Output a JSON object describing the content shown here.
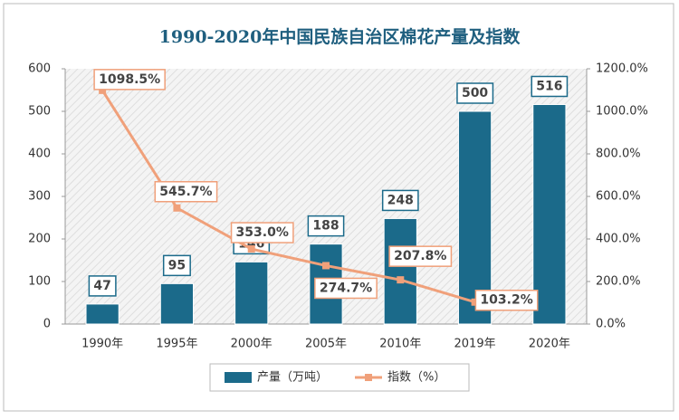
{
  "chart_data": {
    "type": "bar",
    "title": "1990-2020年中国民族自治区棉花产量及指数",
    "categories": [
      "1990年",
      "1995年",
      "2000年",
      "2005年",
      "2010年",
      "2019年",
      "2020年"
    ],
    "series": [
      {
        "name": "产量（万吨）",
        "type": "bar",
        "color": "#1b6a8a",
        "values": [
          47,
          95,
          146,
          188,
          248,
          500,
          516
        ]
      },
      {
        "name": "指数（%）",
        "type": "line",
        "axis": "y2",
        "color": "#f0a07a",
        "values": [
          1098.5,
          545.7,
          353.0,
          274.7,
          207.8,
          103.2,
          null
        ],
        "value_labels": [
          "1098.5%",
          "545.7%",
          "353.0%",
          "274.7%",
          "207.8%",
          "103.2%",
          null
        ]
      }
    ],
    "ylim": [
      0,
      600
    ],
    "yticks": [
      0,
      100,
      200,
      300,
      400,
      500,
      600
    ],
    "y2lim": [
      0,
      1200
    ],
    "y2ticks": [
      {
        "value": 0,
        "label": "0.0%"
      },
      {
        "value": 200,
        "label": "200.0%"
      },
      {
        "value": 400,
        "label": "400.0%"
      },
      {
        "value": 600,
        "label": "600.0%"
      },
      {
        "value": 800,
        "label": "800.0%"
      },
      {
        "value": 1000,
        "label": "1000.0%"
      },
      {
        "value": 1200,
        "label": "1200.0%"
      }
    ],
    "legend": "bottom"
  }
}
